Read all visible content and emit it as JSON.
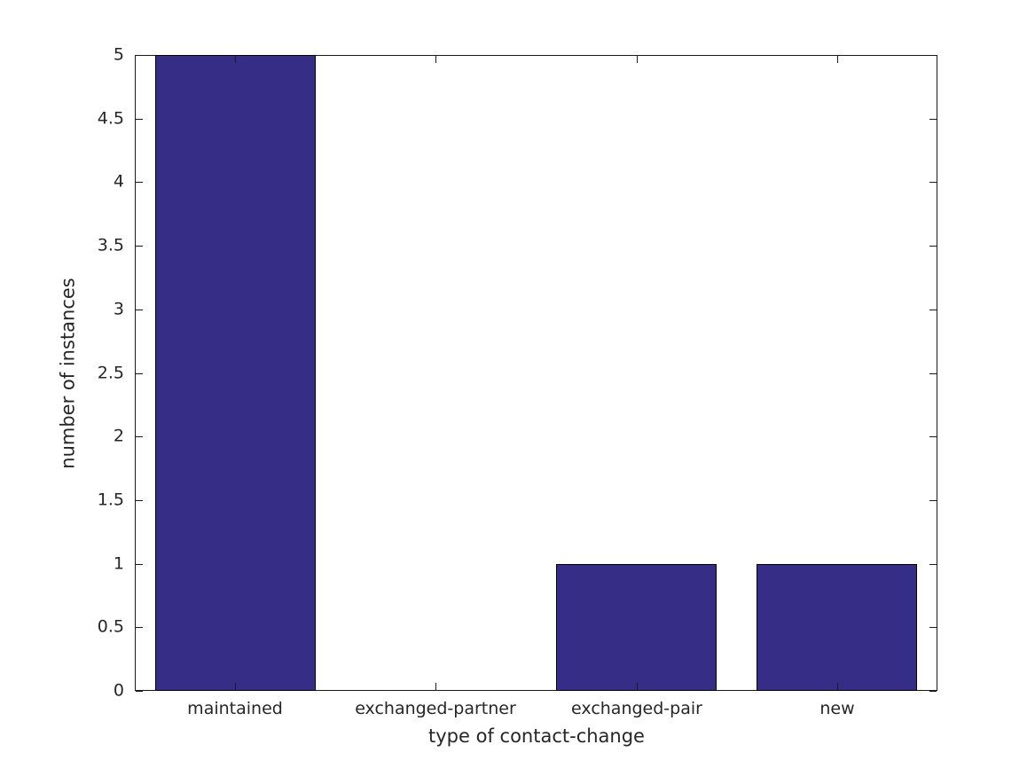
{
  "chart_data": {
    "type": "bar",
    "title": "",
    "categories": [
      "maintained",
      "exchanged-partner",
      "exchanged-pair",
      "new"
    ],
    "values": [
      5,
      0,
      1,
      1
    ],
    "xlabel": "type of contact-change",
    "ylabel": "number of instances",
    "ylim": [
      0,
      5
    ],
    "ytick_step": 0.5,
    "yticks": [
      0,
      0.5,
      1,
      1.5,
      2,
      2.5,
      3,
      3.5,
      4,
      4.5,
      5
    ],
    "ytick_labels": [
      "0",
      "0.5",
      "1",
      "1.5",
      "2",
      "2.5",
      "3",
      "3.5",
      "4",
      "4.5",
      "5"
    ],
    "bar_color": "#352d86",
    "bar_edge_color": "#000000",
    "axis_color": "#1a1a1a",
    "text_color": "#262626",
    "background_color": "#ffffff",
    "grid": false,
    "box": true,
    "legend": null,
    "bar_width_ratio": 0.8
  }
}
